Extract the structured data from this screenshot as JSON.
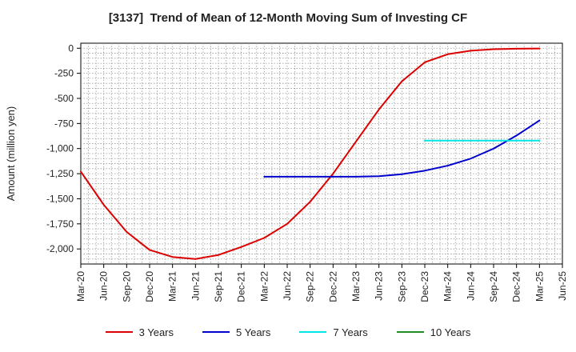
{
  "chart_data": {
    "type": "line",
    "title": "[3137]  Trend of Mean of 12-Month Moving Sum of Investing CF",
    "xlabel": "",
    "ylabel": "Amount (million yen)",
    "ylim": [
      -2150,
      50
    ],
    "y_ticks": [
      0,
      -250,
      -500,
      -750,
      -1000,
      -1250,
      -1500,
      -1750,
      -2000
    ],
    "y_tick_labels": [
      "0",
      "-250",
      "-500",
      "-750",
      "-1,000",
      "-1,250",
      "-1,500",
      "-1,750",
      "-2,000"
    ],
    "x_tick_labels": [
      "Mar-20",
      "Jun-20",
      "Sep-20",
      "Dec-20",
      "Mar-21",
      "Jun-21",
      "Sep-21",
      "Dec-21",
      "Mar-22",
      "Jun-22",
      "Sep-22",
      "Dec-22",
      "Mar-23",
      "Jun-23",
      "Sep-23",
      "Dec-23",
      "Mar-24",
      "Jun-24",
      "Sep-24",
      "Dec-24",
      "Mar-25",
      "Jun-25"
    ],
    "grid": true,
    "legend_position": "bottom",
    "series": [
      {
        "name": "3 Years",
        "color": "#dd0000",
        "x": [
          "Mar-20",
          "Jun-20",
          "Sep-20",
          "Dec-20",
          "Mar-21",
          "Jun-21",
          "Sep-21",
          "Dec-21",
          "Mar-22",
          "Jun-22",
          "Sep-22",
          "Dec-22",
          "Mar-23",
          "Jun-23",
          "Sep-23",
          "Dec-23",
          "Mar-24",
          "Jun-24",
          "Sep-24",
          "Dec-24",
          "Mar-25"
        ],
        "values": [
          -1230,
          -1560,
          -1830,
          -2010,
          -2080,
          -2100,
          -2060,
          -1980,
          -1890,
          -1750,
          -1530,
          -1250,
          -930,
          -610,
          -330,
          -140,
          -60,
          -25,
          -10,
          -5,
          -3
        ]
      },
      {
        "name": "5 Years",
        "color": "#0000cc",
        "x": [
          "Mar-22",
          "Jun-22",
          "Sep-22",
          "Dec-22",
          "Mar-23",
          "Jun-23",
          "Sep-23",
          "Dec-23",
          "Mar-24",
          "Jun-24",
          "Sep-24",
          "Dec-24",
          "Mar-25"
        ],
        "values": [
          -1280,
          -1280,
          -1280,
          -1280,
          -1280,
          -1275,
          -1255,
          -1220,
          -1170,
          -1100,
          -1000,
          -870,
          -720
        ]
      },
      {
        "name": "7 Years",
        "color": "#00e5e5",
        "x": [
          "Dec-23",
          "Mar-24",
          "Jun-24",
          "Sep-24",
          "Dec-24",
          "Mar-25"
        ],
        "values": [
          -920,
          -920,
          -920,
          -920,
          -920,
          -920
        ]
      },
      {
        "name": "10 Years",
        "color": "#228b22",
        "x": [],
        "values": []
      }
    ]
  }
}
